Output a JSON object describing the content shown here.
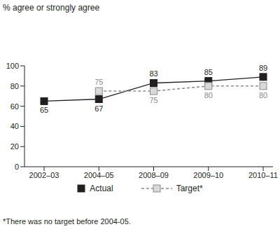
{
  "chart_data": {
    "type": "line",
    "y_label": "% agree or strongly agree",
    "annotation": "*There was no target before 2004-05.",
    "categories": [
      "2002–03",
      "2004–05",
      "2008–09",
      "2009–10",
      "2010–11"
    ],
    "series": [
      {
        "name": "Actual",
        "color": "#231f20",
        "values": [
          65,
          67,
          83,
          85,
          89
        ],
        "marker": "square",
        "line_style": "solid"
      },
      {
        "name": "Target*",
        "color": "#8c8c8c",
        "values": [
          null,
          75,
          75,
          80,
          80
        ],
        "marker": "square",
        "line_style": "dashed"
      }
    ],
    "ylim": [
      0,
      100
    ],
    "yticks": [
      0,
      20,
      40,
      60,
      80,
      100
    ],
    "grid": false,
    "legend": "bottom",
    "data_labels": true
  }
}
